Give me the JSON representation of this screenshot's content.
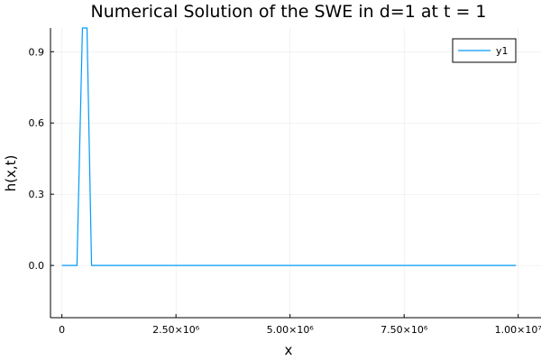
{
  "chart_data": {
    "type": "line",
    "title": "Numerical Solution of the SWE in d=1 at t = 1",
    "xlabel": "x",
    "ylabel": "h(x,t)",
    "xlim": [
      -250000,
      10500000
    ],
    "ylim": [
      -0.22,
      1.0
    ],
    "xticks": [
      {
        "value": 0,
        "label": "0"
      },
      {
        "value": 2500000,
        "label": "2.50×10⁶"
      },
      {
        "value": 5000000,
        "label": "5.00×10⁶"
      },
      {
        "value": 7500000,
        "label": "7.50×10⁶"
      },
      {
        "value": 10000000,
        "label": "1.00×10⁷"
      }
    ],
    "yticks": [
      {
        "value": 0.0,
        "label": "0.0"
      },
      {
        "value": 0.3,
        "label": "0.3"
      },
      {
        "value": 0.6,
        "label": "0.6"
      },
      {
        "value": 0.9,
        "label": "0.9"
      }
    ],
    "grid": true,
    "legend": {
      "position": "top-right"
    },
    "series": [
      {
        "name": "y1",
        "color": "#009AFA",
        "x": [
          0,
          330000,
          450000,
          550000,
          650000,
          9950000
        ],
        "y": [
          0.0,
          0.0,
          1.0,
          1.0,
          0.0,
          0.0
        ]
      }
    ]
  }
}
